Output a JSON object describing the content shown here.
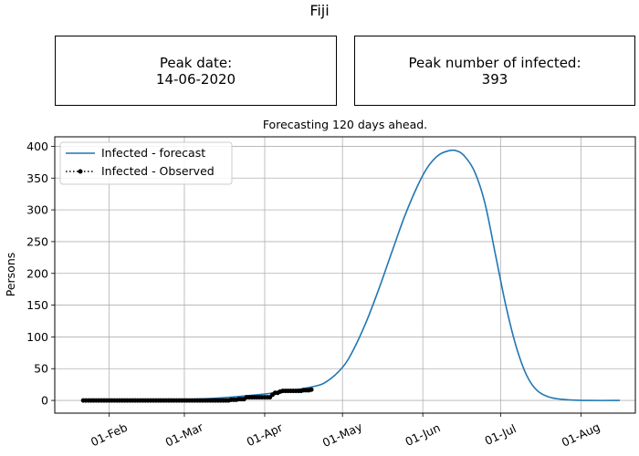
{
  "figure_title": "Fiji",
  "peak_date_box": {
    "label": "Peak date:",
    "value": "14-06-2020"
  },
  "peak_infected_box": {
    "label": "Peak number of infected:",
    "value": "393"
  },
  "chart_data": {
    "type": "line",
    "title": "Forecasting 120 days ahead.",
    "xlabel": "",
    "ylabel": "Persons",
    "x_axis": "date",
    "xlim": [
      "2020-01-11",
      "2020-08-22"
    ],
    "ylim": [
      -20,
      415
    ],
    "x_ticks": [
      {
        "date": "2020-02-01",
        "label": "01-Feb"
      },
      {
        "date": "2020-03-01",
        "label": "01-Mar"
      },
      {
        "date": "2020-04-01",
        "label": "01-Apr"
      },
      {
        "date": "2020-05-01",
        "label": "01-May"
      },
      {
        "date": "2020-06-01",
        "label": "01-Jun"
      },
      {
        "date": "2020-07-01",
        "label": "01-Jul"
      },
      {
        "date": "2020-08-01",
        "label": "01-Aug"
      }
    ],
    "y_ticks": [
      0,
      50,
      100,
      150,
      200,
      250,
      300,
      350,
      400
    ],
    "grid": true,
    "legend_position": "top-left",
    "series": [
      {
        "name": "Infected - forecast",
        "style": "solid",
        "color": "#1f77b4",
        "points": [
          [
            "2020-01-22",
            0
          ],
          [
            "2020-02-15",
            0.5
          ],
          [
            "2020-03-01",
            1.5
          ],
          [
            "2020-03-15",
            4
          ],
          [
            "2020-04-01",
            10
          ],
          [
            "2020-04-10",
            15
          ],
          [
            "2020-04-20",
            22
          ],
          [
            "2020-04-25",
            30
          ],
          [
            "2020-05-01",
            52
          ],
          [
            "2020-05-05",
            78
          ],
          [
            "2020-05-10",
            122
          ],
          [
            "2020-05-15",
            175
          ],
          [
            "2020-05-20",
            233
          ],
          [
            "2020-05-25",
            290
          ],
          [
            "2020-05-30",
            338
          ],
          [
            "2020-06-03",
            368
          ],
          [
            "2020-06-07",
            386
          ],
          [
            "2020-06-11",
            393
          ],
          [
            "2020-06-14",
            393
          ],
          [
            "2020-06-17",
            385
          ],
          [
            "2020-06-21",
            360
          ],
          [
            "2020-06-25",
            310
          ],
          [
            "2020-06-29",
            230
          ],
          [
            "2020-07-03",
            150
          ],
          [
            "2020-07-07",
            85
          ],
          [
            "2020-07-11",
            40
          ],
          [
            "2020-07-15",
            16
          ],
          [
            "2020-07-20",
            5
          ],
          [
            "2020-07-27",
            1
          ],
          [
            "2020-08-05",
            0
          ],
          [
            "2020-08-16",
            0
          ]
        ]
      },
      {
        "name": "Infected - Observed",
        "style": "dotted-marker",
        "color": "#000000",
        "points": [
          [
            "2020-01-22",
            0
          ],
          [
            "2020-03-15",
            0
          ],
          [
            "2020-03-19",
            1
          ],
          [
            "2020-03-22",
            2
          ],
          [
            "2020-03-25",
            5
          ],
          [
            "2020-04-03",
            5
          ],
          [
            "2020-04-04",
            9
          ],
          [
            "2020-04-05",
            12
          ],
          [
            "2020-04-07",
            14
          ],
          [
            "2020-04-08",
            15
          ],
          [
            "2020-04-16",
            16
          ],
          [
            "2020-04-19",
            17
          ]
        ]
      }
    ]
  }
}
